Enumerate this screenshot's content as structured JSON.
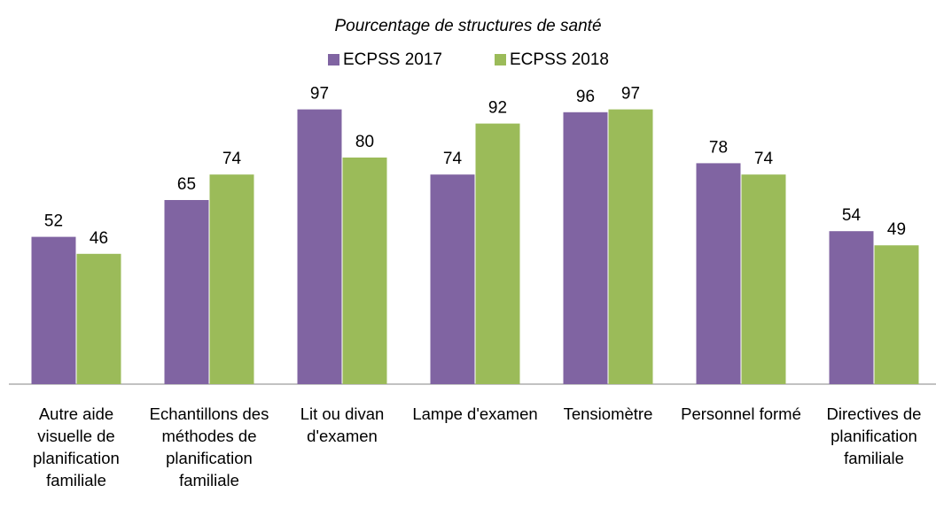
{
  "chart_data": {
    "type": "bar",
    "title": "Pourcentage de structures de santé",
    "categories": [
      "Autre aide visuelle de planification familiale",
      "Echantillons des méthodes de planification familiale",
      "Lit ou divan d'examen",
      "Lampe d'examen",
      "Tensiomètre",
      "Personnel formé",
      "Directives de planification familiale"
    ],
    "series": [
      {
        "name": "ECPSS 2017",
        "color": "#8064a2",
        "values": [
          52,
          65,
          97,
          74,
          96,
          78,
          54
        ]
      },
      {
        "name": "ECPSS 2018",
        "color": "#9bbb59",
        "values": [
          46,
          74,
          80,
          92,
          97,
          74,
          49
        ]
      }
    ],
    "ylim": [
      0,
      100
    ]
  }
}
